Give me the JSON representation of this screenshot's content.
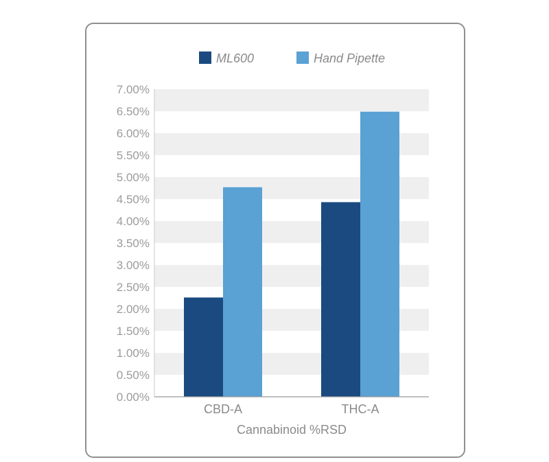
{
  "chart_data": {
    "type": "bar",
    "categories": [
      "CBD-A",
      "THC-A"
    ],
    "series": [
      {
        "name": "ML600",
        "values": [
          2.26,
          4.43
        ],
        "color": "#1b4a80"
      },
      {
        "name": "Hand Pipette",
        "values": [
          4.77,
          6.49
        ],
        "color": "#5aa1d4"
      }
    ],
    "xlabel": "Cannabinoid %RSD",
    "ylabel": "",
    "ylim": [
      0,
      7
    ],
    "y_ticks": [
      "0.00%",
      "0.50%",
      "1.00%",
      "1.50%",
      "2.00%",
      "2.50%",
      "3.00%",
      "3.50%",
      "4.00%",
      "4.50%",
      "5.00%",
      "5.50%",
      "6.00%",
      "6.50%",
      "7.00%"
    ],
    "grid": "alternating horizontal bands",
    "legend_position": "top"
  }
}
